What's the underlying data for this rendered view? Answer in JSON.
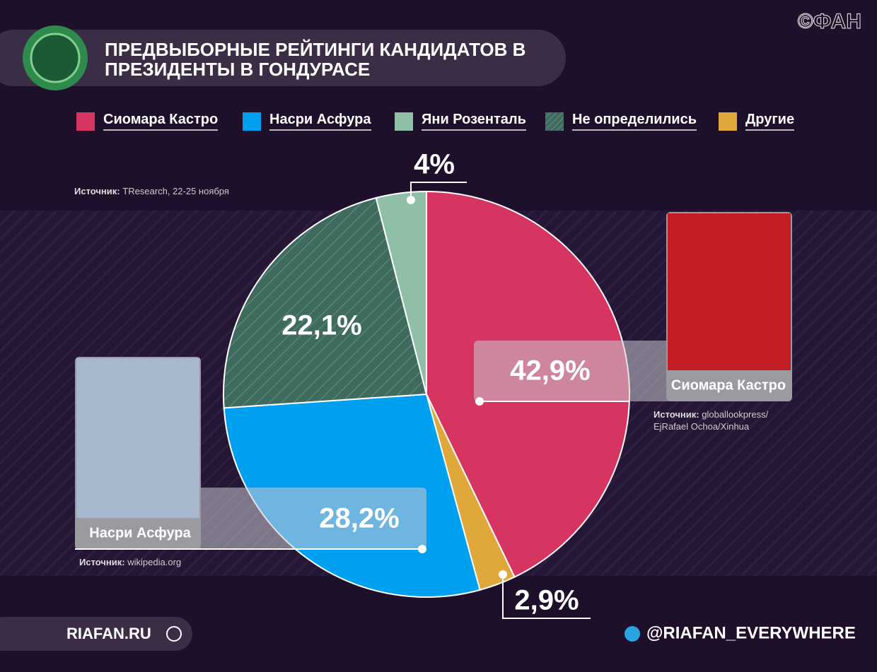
{
  "header": {
    "title": "ПРЕДВЫБОРНЫЕ РЕЙТИНГИ КАНДИДАТОВ В ПРЕЗИДЕНТЫ В ГОНДУРАСЕ",
    "brand": "©ФАН"
  },
  "chart_data": {
    "type": "pie",
    "categories": [
      "Сиомара Кастро",
      "Другие",
      "Насри Асфура",
      "Не определились",
      "Яни Розенталь"
    ],
    "values": [
      42.9,
      2.9,
      28.2,
      22.1,
      4
    ],
    "value_labels": [
      "42,9%",
      "2,9%",
      "28,2%",
      "22,1%",
      "4%"
    ],
    "colors": [
      "#d63562",
      "#e0a83a",
      "#00a0f0",
      "#3e6b5d",
      "#8fbfa6"
    ],
    "hatched": [
      false,
      false,
      false,
      true,
      false
    ]
  },
  "sources": {
    "label": "Источник:",
    "data": "TResearch, 22-25 ноября",
    "photo_castro_1": "globallookpress/",
    "photo_castro_2": "EjRafael Ochoa/Xinhua",
    "photo_asfura": "wikipedia.org"
  },
  "footer": {
    "site": "RIAFAN.RU",
    "telegram": "@RIAFAN_EVERYWHERE"
  }
}
